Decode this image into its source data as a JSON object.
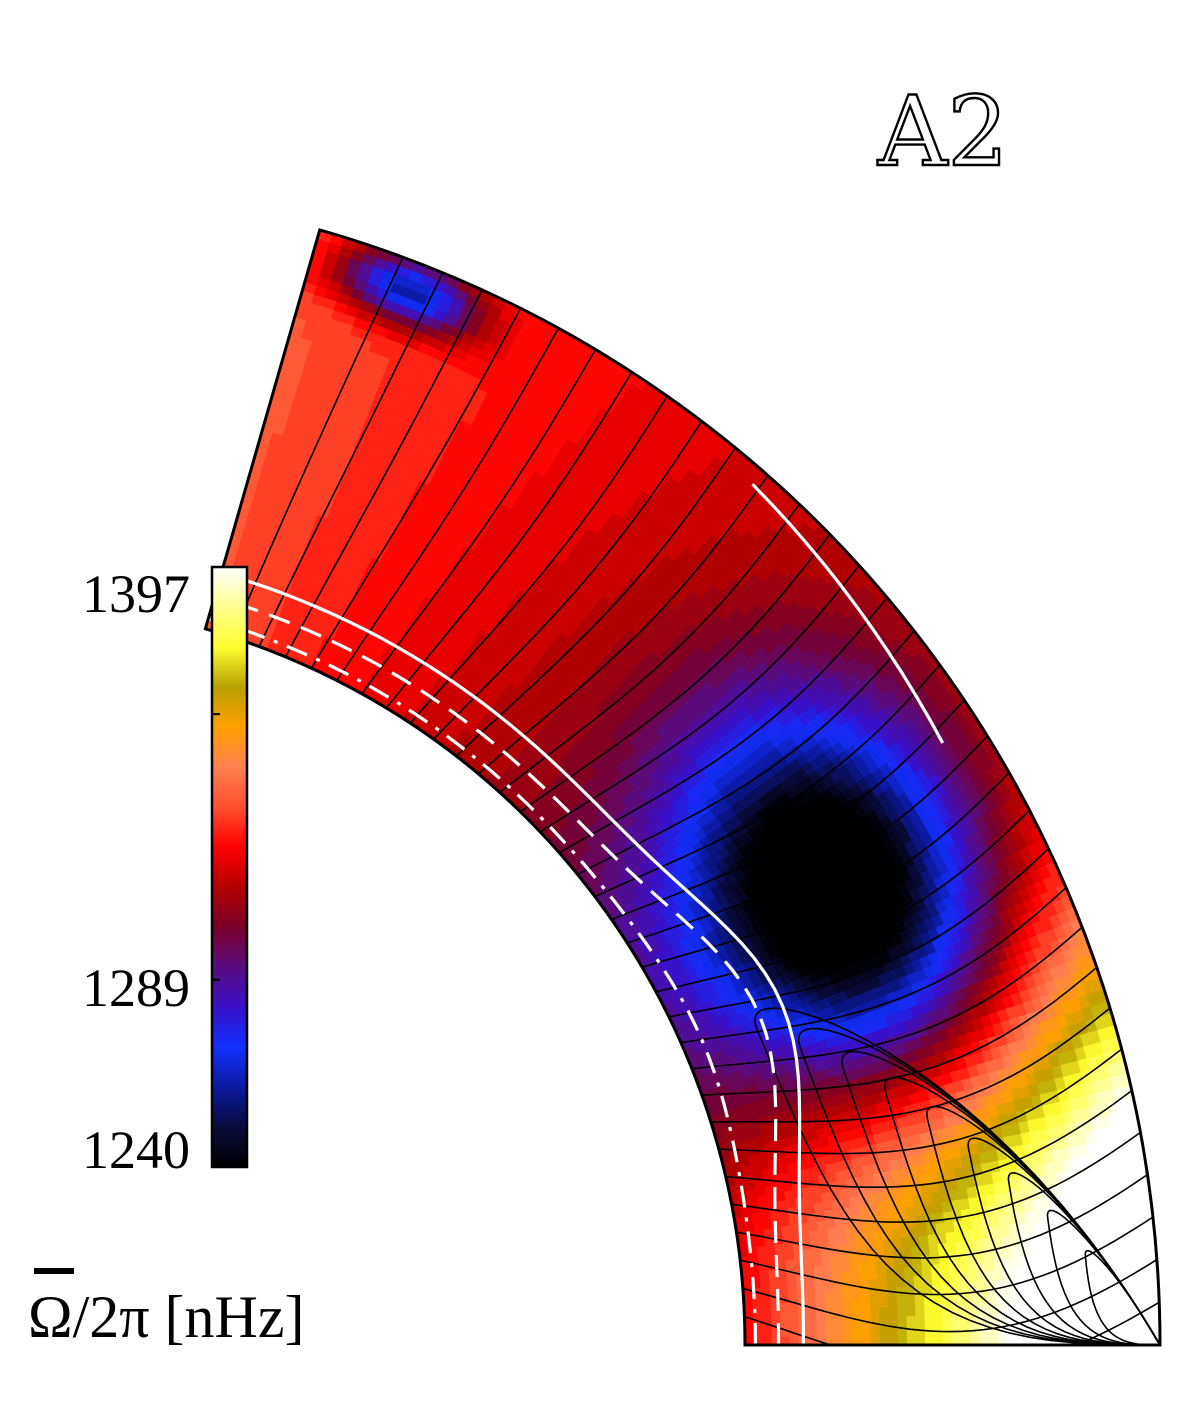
{
  "chart_data": {
    "type": "heatmap",
    "title": "A2",
    "quantity_label": "Ω/2π [nHz]",
    "quantity_symbol": "Ω",
    "quantity_rest": "/2π [nHz]",
    "colorbar": {
      "min": 1240,
      "max": 1397,
      "tick_labels": [
        "1397",
        "1289",
        "1240"
      ],
      "tick_values": [
        1397,
        1289,
        1240
      ],
      "colormap": [
        "#000000",
        "#0a0a3c",
        "#0b1aa0",
        "#1230ff",
        "#3a10c8",
        "#5a0c80",
        "#7a0028",
        "#b40000",
        "#ff0000",
        "#ff5030",
        "#ff8050",
        "#ffa000",
        "#b8a000",
        "#ffff30",
        "#ffff90",
        "#ffffff"
      ]
    },
    "domain": "meridional quarter-annulus (pole at top-left, equator at bottom-right)",
    "contour_color": "#000000",
    "overlay_line_color": "#ffffff",
    "overlay_lines": [
      "solid",
      "dashed",
      "dash-dot"
    ],
    "grid": false,
    "legend": "colorbar left"
  }
}
